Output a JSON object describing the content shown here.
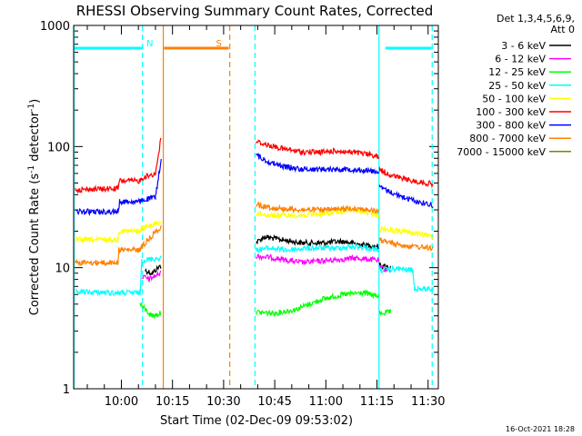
{
  "chart_data": {
    "type": "line",
    "title": "RHESSI Observing Summary Count Rates, Corrected",
    "xlabel": "Start Time (02-Dec-09 09:53:02)",
    "ylabel_main": "Corrected Count Rate (s",
    "ylabel_sup1": "-1",
    "ylabel_mid": " detector",
    "ylabel_sup2": "-1",
    "ylabel_end": ")",
    "y_scale": "log",
    "ylim": [
      1,
      1000
    ],
    "xlim": [
      -7,
      100
    ],
    "x_unit": "minutes after 09:53:02",
    "y_ticks": [
      {
        "value": 1,
        "label": "1"
      },
      {
        "value": 10,
        "label": "10"
      },
      {
        "value": 100,
        "label": "100"
      },
      {
        "value": 1000,
        "label": "1000"
      }
    ],
    "x_ticks": [
      {
        "value": 7,
        "label": "10:00"
      },
      {
        "value": 22,
        "label": "10:15"
      },
      {
        "value": 37,
        "label": "10:30"
      },
      {
        "value": 52,
        "label": "10:45"
      },
      {
        "value": 67,
        "label": "11:00"
      },
      {
        "value": 82,
        "label": "11:15"
      },
      {
        "value": 97,
        "label": "11:30"
      }
    ],
    "legend_header": [
      "Det 1,3,4,5,6,9,",
      "Att 0"
    ],
    "legend_placement": "right",
    "series": [
      {
        "name": "3 - 6 keV",
        "color": "#000000",
        "segments": [
          {
            "x": [
              10,
              13,
              14,
              16,
              18.7
            ],
            "y": [
              null,
              null,
              9.5,
              9,
              10.5
            ]
          },
          {
            "x": [
              46.5,
              49,
              54,
              60,
              66,
              72,
              77,
              82.5
            ],
            "y": [
              16,
              18,
              17,
              16,
              16,
              16.5,
              15.5,
              15
            ]
          },
          {
            "x": [
              82.7,
              86
            ],
            "y": [
              10.5,
              10
            ]
          }
        ]
      },
      {
        "name": "6 - 12 keV",
        "color": "#ff00ff",
        "segments": [
          {
            "x": [
              13,
              15,
              18.5
            ],
            "y": [
              8.5,
              8,
              9
            ]
          },
          {
            "x": [
              46.5,
              52,
              60,
              68,
              76,
              82.5
            ],
            "y": [
              12.5,
              12,
              11,
              11.5,
              12,
              11.5
            ]
          },
          {
            "x": [
              82.7,
              86
            ],
            "y": [
              10,
              9.5
            ]
          }
        ]
      },
      {
        "name": "12 - 25 keV",
        "color": "#00ff00",
        "segments": [
          {
            "x": [
              12.5,
              14,
              16,
              18.5
            ],
            "y": [
              5,
              4.5,
              4,
              4.2
            ]
          },
          {
            "x": [
              46.5,
              52,
              58,
              66,
              72,
              78,
              82.5
            ],
            "y": [
              4.3,
              4.2,
              4.5,
              5.5,
              6,
              6.2,
              5.8
            ]
          },
          {
            "x": [
              82.7,
              86
            ],
            "y": [
              4.2,
              4.3
            ]
          }
        ]
      },
      {
        "name": "25 - 50 keV",
        "color": "#00ffff",
        "segments": [
          {
            "x": [
              -6.5,
              6,
              6.2,
              12.5,
              13,
              18.7
            ],
            "y": [
              6.3,
              6.2,
              6.2,
              6.2,
              11.5,
              12
            ]
          },
          {
            "x": [
              46.5,
              50,
              56,
              62,
              70,
              76,
              82.5
            ],
            "y": [
              14,
              14.5,
              14,
              14.5,
              14.5,
              15,
              14
            ]
          },
          {
            "x": [
              82.7,
              88,
              92.5,
              93,
              98.5
            ],
            "y": [
              9.5,
              9.8,
              9.5,
              6.7,
              6.7
            ]
          }
        ]
      },
      {
        "name": "50 - 100 keV",
        "color": "#ffff00",
        "segments": [
          {
            "x": [
              -6.5,
              6,
              6.2,
              12.5,
              13,
              18.7
            ],
            "y": [
              17,
              17,
              20,
              20,
              21,
              24
            ]
          },
          {
            "x": [
              46.5,
              52,
              60,
              68,
              74,
              78,
              82.5
            ],
            "y": [
              28,
              27,
              27,
              28,
              30,
              29,
              27
            ]
          },
          {
            "x": [
              82.7,
              86,
              92,
              98.5
            ],
            "y": [
              21,
              20.5,
              19.5,
              18
            ]
          }
        ]
      },
      {
        "name": "100 - 300 keV",
        "color": "#ff0000",
        "segments": [
          {
            "x": [
              -6.5,
              6,
              6.5,
              12.5,
              13,
              17,
              18.7
            ],
            "y": [
              44,
              45,
              52,
              52,
              55,
              60,
              120
            ]
          },
          {
            "x": [
              46.5,
              50,
              55,
              60,
              66,
              70,
              74,
              80,
              82.5
            ],
            "y": [
              110,
              103,
              95,
              90,
              90,
              92,
              90,
              86,
              82
            ]
          },
          {
            "x": [
              82.7,
              86,
              90,
              94,
              98.5
            ],
            "y": [
              65,
              58,
              54,
              51,
              49
            ]
          }
        ]
      },
      {
        "name": "300 - 800 keV",
        "color": "#0000ff",
        "segments": [
          {
            "x": [
              -6.5,
              6,
              6.5,
              12.5,
              13,
              17,
              18.7
            ],
            "y": [
              29,
              29,
              35,
              35,
              36,
              38,
              80
            ]
          },
          {
            "x": [
              46.5,
              50,
              55,
              60,
              66,
              74,
              82.5
            ],
            "y": [
              85,
              75,
              68,
              65,
              65,
              65,
              62
            ]
          },
          {
            "x": [
              82.7,
              86,
              90,
              94,
              98.5
            ],
            "y": [
              46,
              42,
              38,
              35,
              33
            ]
          }
        ]
      },
      {
        "name": "800 - 7000 keV",
        "color": "#ff8000",
        "segments": [
          {
            "x": [
              -6.5,
              6,
              6.2,
              12.5,
              13,
              18.7
            ],
            "y": [
              11,
              11,
              14,
              14,
              15,
              22
            ]
          },
          {
            "x": [
              46.5,
              52,
              60,
              68,
              76,
              82.5
            ],
            "y": [
              33,
              31,
              30,
              30,
              31,
              29
            ]
          },
          {
            "x": [
              82.7,
              86,
              92,
              98.5
            ],
            "y": [
              17,
              16,
              15,
              14.5
            ]
          }
        ]
      },
      {
        "name": "7000 - 15000 keV",
        "color": "#808000",
        "segments": []
      }
    ],
    "attenuator_states": [
      {
        "label": "N",
        "color": "#00ffff",
        "x": [
          -7,
          13
        ],
        "y": 650
      },
      {
        "label": "S",
        "color": "#ff8000",
        "x": [
          19.5,
          38.5
        ],
        "y": 650
      },
      {
        "label": "",
        "color": "#00ffff",
        "x": [
          84.5,
          98
        ],
        "y": 650
      }
    ],
    "markers": [
      {
        "x": -6.9,
        "color": "#00ffff",
        "style": "solid"
      },
      {
        "x": 13.2,
        "color": "#00ffff",
        "style": "dashed"
      },
      {
        "x": 19.3,
        "color": "#ff8000",
        "style": "solid"
      },
      {
        "x": 38.8,
        "color": "#ff8000",
        "style": "dashed"
      },
      {
        "x": 46.2,
        "color": "#00ffff",
        "style": "dashed"
      },
      {
        "x": 82.6,
        "color": "#00ffff",
        "style": "solid"
      },
      {
        "x": 98.2,
        "color": "#00ffff",
        "style": "dashed"
      }
    ],
    "timestamp": "16-Oct-2021 18:28"
  }
}
